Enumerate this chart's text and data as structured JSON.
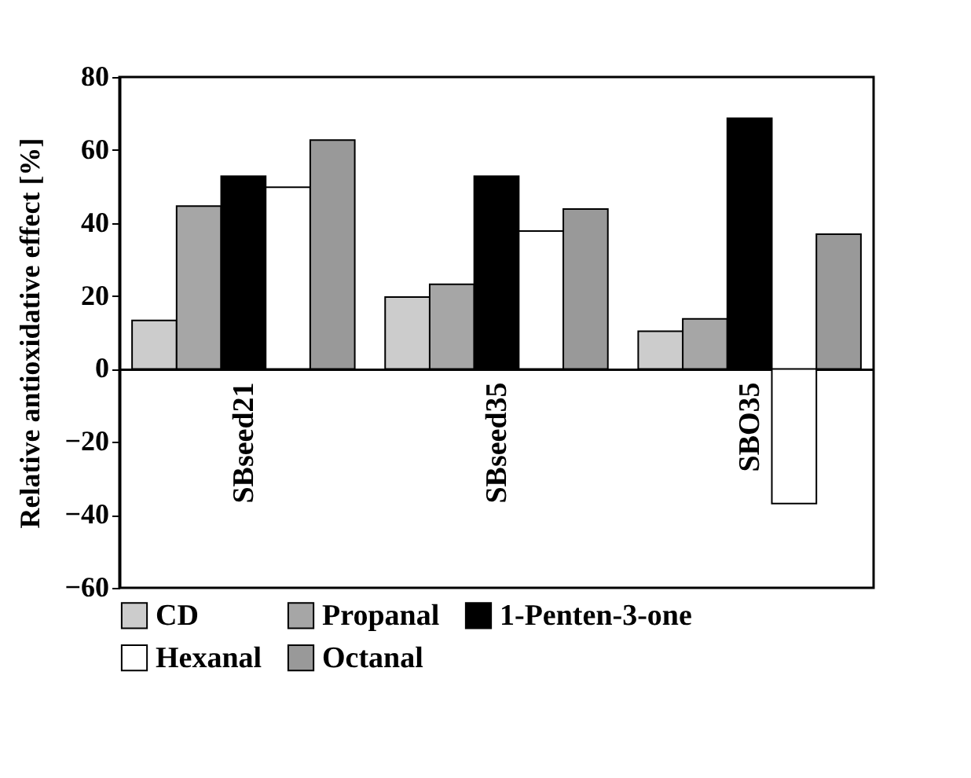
{
  "chart_data": {
    "type": "bar",
    "ylabel": "Relative antioxidative effect [%]",
    "categories": [
      "SBseed21",
      "SBseed35",
      "SBO35"
    ],
    "series": [
      {
        "name": "CD",
        "color": "#cccccc",
        "values": [
          13.3,
          19.7,
          10.3
        ]
      },
      {
        "name": "Propanal",
        "color": "#a6a6a6",
        "values": [
          44.6,
          23.2,
          13.7
        ]
      },
      {
        "name": "1-Penten-3-one",
        "color": "#000000",
        "values": [
          52.8,
          52.8,
          68.7
        ]
      },
      {
        "name": "Hexanal",
        "color": "#ffffff",
        "values": [
          49.8,
          37.8,
          -36.9
        ]
      },
      {
        "name": "Octanal",
        "color": "#999999",
        "values": [
          62.7,
          43.8,
          36.9
        ]
      }
    ],
    "ylim": [
      -60,
      80
    ],
    "yticks": [
      -60,
      -40,
      -20,
      0,
      20,
      40,
      60,
      80
    ],
    "grid": false,
    "legend": "bottom"
  }
}
